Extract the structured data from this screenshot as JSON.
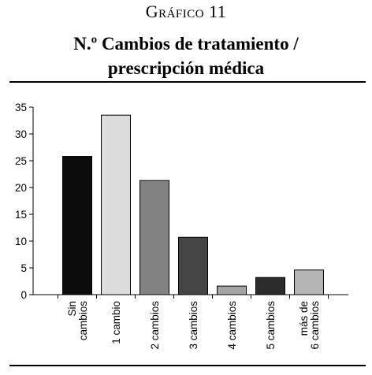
{
  "figure": {
    "label": "Gráfico 11",
    "title_line1": "N.º Cambios de tratamiento /",
    "title_line2": "prescripción médica"
  },
  "chart_data": {
    "type": "bar",
    "title": "N.º Cambios de tratamiento / prescripción médica",
    "xlabel": "",
    "ylabel": "",
    "categories": [
      [
        "Sin",
        "cambios"
      ],
      [
        "1 cambio"
      ],
      [
        "2 cambios"
      ],
      [
        "3 cambios"
      ],
      [
        "4 cambios"
      ],
      [
        "5 cambios"
      ],
      [
        "más de",
        "6 cambios"
      ]
    ],
    "values": [
      25.8,
      33.5,
      21.3,
      10.7,
      1.6,
      3.2,
      4.6
    ],
    "colors": [
      "#0c0c0c",
      "#dcdcdc",
      "#828282",
      "#454545",
      "#a3a3a3",
      "#2c2c2c",
      "#b5b5b5"
    ],
    "ylim": [
      0,
      35
    ],
    "yticks": [
      0,
      5,
      10,
      15,
      20,
      25,
      30,
      35
    ],
    "grid": false,
    "legend": "none"
  }
}
